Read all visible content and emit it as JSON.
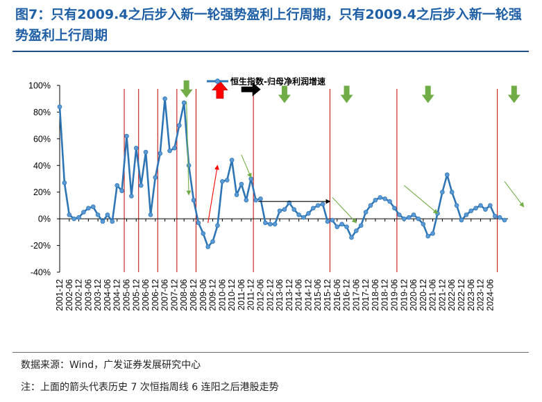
{
  "title": "图7：只有2009.4之后步入新一轮强势盈利上行周期，只有2009.4之后步入新一轮强势盈利上行周期",
  "source": "数据来源：Wind，广发证券发展研究中心",
  "footnote": "注：上面的箭头代表历史 7 次恒指周线 6 连阳之后港股走势",
  "colors": {
    "series": "#2e75b6",
    "marker": "#5b9bd5",
    "vline": "#c00000",
    "up": "#ff0000",
    "down": "#70ad47",
    "flat": "#000000",
    "title": "#1f5fa6"
  },
  "chart_data": {
    "type": "line",
    "title": "",
    "xlabel": "",
    "ylabel": "",
    "ylim": [
      -0.4,
      1.0
    ],
    "y_ticks": [
      "-40%",
      "-20%",
      "0%",
      "20%",
      "40%",
      "60%",
      "80%",
      "100%"
    ],
    "y_tick_values": [
      -0.4,
      -0.2,
      0,
      0.2,
      0.4,
      0.6,
      0.8,
      1.0
    ],
    "x_tick_labels": [
      "2001-12",
      "2002-06",
      "2002-12",
      "2003-06",
      "2003-12",
      "2004-06",
      "2004-12",
      "2005-06",
      "2005-12",
      "2006-06",
      "2006-12",
      "2007-06",
      "2007-12",
      "2008-06",
      "2008-12",
      "2009-06",
      "2009-12",
      "2010-06",
      "2010-12",
      "2011-06",
      "2011-12",
      "2012-06",
      "2012-12",
      "2013-06",
      "2013-12",
      "2014-06",
      "2014-12",
      "2015-06",
      "2015-12",
      "2016-06",
      "2016-12",
      "2017-06",
      "2017-12",
      "2018-06",
      "2018-12",
      "2019-06",
      "2019-12",
      "2020-06",
      "2020-12",
      "2021-06",
      "2021-12",
      "2022-06",
      "2022-12",
      "2023-06",
      "2023-12",
      "2024-06"
    ],
    "series": [
      {
        "name": "恒生指数-归母净利润增速",
        "values": [
          0.84,
          0.27,
          0.03,
          0.0,
          0.01,
          0.05,
          0.08,
          0.09,
          0.03,
          -0.02,
          0.03,
          -0.02,
          0.25,
          0.21,
          0.62,
          0.17,
          0.53,
          0.25,
          0.5,
          0.03,
          0.31,
          0.49,
          0.9,
          0.51,
          0.53,
          0.7,
          0.87,
          0.4,
          0.14,
          -0.03,
          -0.11,
          -0.21,
          -0.17,
          -0.05,
          0.28,
          0.29,
          0.44,
          0.18,
          0.26,
          0.14,
          0.3,
          0.14,
          0.15,
          -0.03,
          -0.04,
          -0.04,
          0.06,
          0.07,
          0.12,
          0.07,
          0.03,
          0.01,
          0.04,
          0.08,
          0.1,
          0.11,
          -0.02,
          -0.01,
          -0.06,
          -0.04,
          -0.06,
          -0.14,
          -0.09,
          -0.05,
          0.05,
          0.1,
          0.14,
          0.16,
          0.15,
          0.13,
          0.08,
          0.03,
          0.0,
          0.01,
          0.03,
          0.0,
          -0.04,
          -0.13,
          -0.11,
          0.04,
          0.2,
          0.33,
          0.2,
          0.1,
          -0.01,
          0.03,
          0.06,
          0.08,
          0.1,
          0.07,
          0.1,
          0.02,
          0.01,
          -0.01
        ]
      }
    ],
    "vline_positions_x": [
      13.5,
      16.5,
      20.5,
      24.5,
      28.5,
      40.5,
      56.5,
      70.5,
      91.5
    ],
    "annotations": [
      {
        "kind": "down",
        "style": "big",
        "x": 26.5,
        "y": 0.97
      },
      {
        "kind": "up",
        "style": "big",
        "x": 33.5,
        "y": 0.97
      },
      {
        "kind": "flat",
        "style": "big",
        "x": 40.0,
        "y": 0.97
      },
      {
        "kind": "down",
        "style": "big",
        "x": 47.0,
        "y": 0.93
      },
      {
        "kind": "down",
        "style": "big",
        "x": 60.0,
        "y": 0.93
      },
      {
        "kind": "down",
        "style": "big",
        "x": 77.0,
        "y": 0.93
      },
      {
        "kind": "down",
        "style": "big",
        "x": 95.0,
        "y": 0.93
      },
      {
        "kind": "thin",
        "color": "down",
        "x1": 26.5,
        "y1": 0.88,
        "x2": 27.0,
        "y2": 0.18
      },
      {
        "kind": "thin",
        "color": "up",
        "x1": 31.0,
        "y1": -0.03,
        "x2": 33.0,
        "y2": 0.4
      },
      {
        "kind": "thin",
        "color": "down",
        "x1": 38.0,
        "y1": 0.48,
        "x2": 40.0,
        "y2": 0.31
      },
      {
        "kind": "thin",
        "color": "flat",
        "x1": 41.5,
        "y1": 0.13,
        "x2": 56.5,
        "y2": 0.13
      },
      {
        "kind": "thin",
        "color": "down",
        "x1": 57.0,
        "y1": 0.16,
        "x2": 62.0,
        "y2": -0.03
      },
      {
        "kind": "thin",
        "color": "down",
        "x1": 72.0,
        "y1": 0.25,
        "x2": 79.0,
        "y2": 0.04
      },
      {
        "kind": "thin",
        "color": "down",
        "x1": 93.0,
        "y1": 0.28,
        "x2": 97.0,
        "y2": 0.09
      }
    ],
    "legend": "top-center",
    "grid": false
  }
}
